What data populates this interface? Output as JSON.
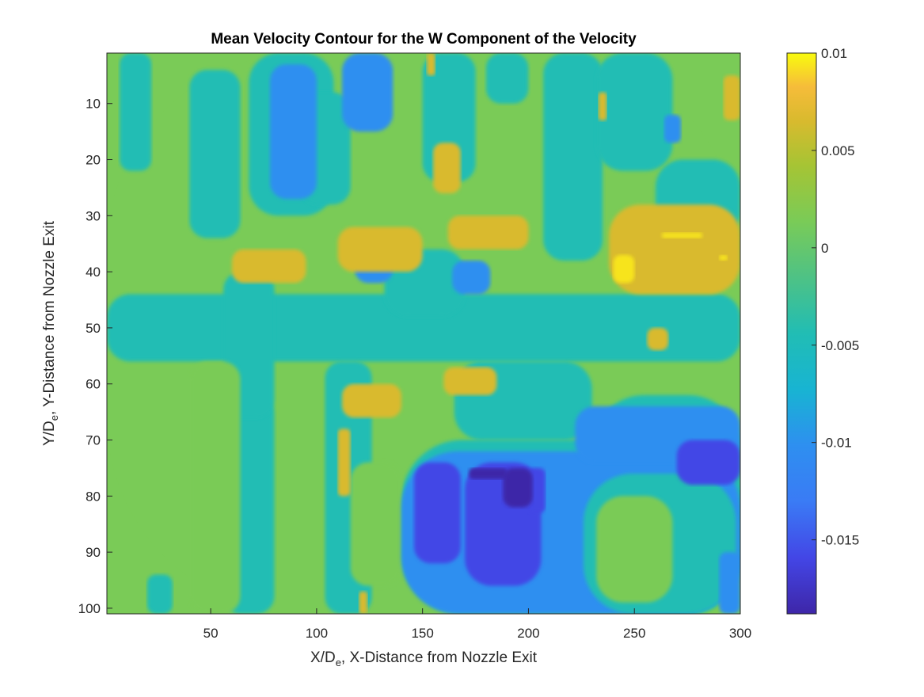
{
  "chart_data": {
    "type": "heatmap",
    "title": "Mean Velocity Contour for the W Component of the Velocity",
    "xlabel": {
      "prefix": "X/D",
      "sub": "e",
      "suffix": ", X-Distance from Nozzle Exit"
    },
    "ylabel": {
      "prefix": "Y/D",
      "sub": "e",
      "suffix": ",  Y-Distance from Nozzle Exit"
    },
    "xlim": [
      1,
      300
    ],
    "ylim": [
      1,
      101
    ],
    "y_reversed": true,
    "xticks": [
      50,
      100,
      150,
      200,
      250,
      300
    ],
    "yticks": [
      10,
      20,
      30,
      40,
      50,
      60,
      70,
      80,
      90,
      100
    ],
    "colorbar": {
      "colormap": "parula",
      "clim": [
        -0.0188,
        0.01
      ],
      "ticks": [
        0.01,
        0.005,
        0,
        -0.005,
        -0.01,
        -0.015
      ],
      "tick_labels": [
        "0.01",
        "0.005",
        "0",
        "-0.005",
        "-0.01",
        "-0.015"
      ]
    },
    "grid": false,
    "contour_levels": [
      -0.0188,
      -0.0165,
      -0.014,
      -0.0115,
      -0.009,
      -0.0065,
      -0.004,
      -0.0015,
      0.001,
      0.0035,
      0.006,
      0.0085
    ],
    "level_colors": [
      "#3e26a8",
      "#4346e6",
      "#3a7bf5",
      "#2e8ff0",
      "#18b4d2",
      "#21bdb4",
      "#4ec285",
      "#7acb57",
      "#a6c434",
      "#d9ba2e",
      "#f6bc3a",
      "#f7e41f"
    ],
    "regions": [
      {
        "value": 0.0,
        "x": [
          1,
          300
        ],
        "y": [
          1,
          101
        ]
      },
      {
        "value": -0.005,
        "x": [
          1,
          300
        ],
        "y": [
          44,
          56
        ]
      },
      {
        "value": -0.005,
        "x": [
          7,
          22
        ],
        "y": [
          1,
          22
        ]
      },
      {
        "value": -0.005,
        "x": [
          40,
          64
        ],
        "y": [
          4,
          34
        ]
      },
      {
        "value": -0.005,
        "x": [
          68,
          108
        ],
        "y": [
          1,
          30
        ]
      },
      {
        "value": -0.005,
        "x": [
          92,
          116
        ],
        "y": [
          8,
          28
        ]
      },
      {
        "value": -0.005,
        "x": [
          150,
          175
        ],
        "y": [
          1,
          24
        ]
      },
      {
        "value": -0.005,
        "x": [
          180,
          200
        ],
        "y": [
          1,
          10
        ]
      },
      {
        "value": -0.005,
        "x": [
          207,
          235
        ],
        "y": [
          1,
          38
        ]
      },
      {
        "value": -0.005,
        "x": [
          232,
          268
        ],
        "y": [
          1,
          22
        ]
      },
      {
        "value": -0.005,
        "x": [
          260,
          300
        ],
        "y": [
          20,
          34
        ]
      },
      {
        "value": -0.005,
        "x": [
          132,
          170
        ],
        "y": [
          36,
          48
        ]
      },
      {
        "value": -0.005,
        "x": [
          165,
          230
        ],
        "y": [
          56,
          70
        ]
      },
      {
        "value": -0.005,
        "x": [
          230,
          300
        ],
        "y": [
          62,
          101
        ]
      },
      {
        "value": -0.005,
        "x": [
          140,
          300
        ],
        "y": [
          70,
          101
        ]
      },
      {
        "value": -0.005,
        "x": [
          56,
          80
        ],
        "y": [
          62,
          101
        ]
      },
      {
        "value": -0.005,
        "x": [
          104,
          126
        ],
        "y": [
          56,
          101
        ]
      },
      {
        "value": -0.005,
        "x": [
          56,
          80
        ],
        "y": [
          40,
          66
        ]
      },
      {
        "value": -0.005,
        "x": [
          20,
          32
        ],
        "y": [
          94,
          101
        ]
      },
      {
        "value": 0.0,
        "x": [
          116,
          140
        ],
        "y": [
          74,
          96
        ]
      },
      {
        "value": 0.0,
        "x": [
          236,
          270
        ],
        "y": [
          76,
          99
        ]
      },
      {
        "value": 0.0,
        "x": [
          40,
          64
        ],
        "y": [
          56,
          101
        ]
      },
      {
        "value": -0.01,
        "x": [
          78,
          100
        ],
        "y": [
          3,
          27
        ]
      },
      {
        "value": -0.01,
        "x": [
          112,
          136
        ],
        "y": [
          1,
          15
        ]
      },
      {
        "value": -0.01,
        "x": [
          264,
          272
        ],
        "y": [
          12,
          17
        ]
      },
      {
        "value": -0.01,
        "x": [
          118,
          136
        ],
        "y": [
          34,
          42
        ]
      },
      {
        "value": -0.01,
        "x": [
          164,
          182
        ],
        "y": [
          38,
          44
        ]
      },
      {
        "value": -0.01,
        "x": [
          140,
          300
        ],
        "y": [
          72,
          101
        ]
      },
      {
        "value": -0.01,
        "x": [
          222,
          300
        ],
        "y": [
          64,
          74
        ]
      },
      {
        "value": -0.005,
        "x": [
          226,
          298
        ],
        "y": [
          76,
          101
        ]
      },
      {
        "value": 0.0,
        "x": [
          232,
          268
        ],
        "y": [
          80,
          99
        ]
      },
      {
        "value": -0.01,
        "x": [
          290,
          300
        ],
        "y": [
          90,
          101
        ]
      },
      {
        "value": -0.015,
        "x": [
          146,
          168
        ],
        "y": [
          74,
          92
        ]
      },
      {
        "value": -0.015,
        "x": [
          170,
          206
        ],
        "y": [
          74,
          96
        ]
      },
      {
        "value": -0.015,
        "x": [
          200,
          208
        ],
        "y": [
          75,
          83
        ]
      },
      {
        "value": -0.015,
        "x": [
          270,
          300
        ],
        "y": [
          70,
          78
        ]
      },
      {
        "value": -0.018,
        "x": [
          188,
          202
        ],
        "y": [
          75,
          82
        ]
      },
      {
        "value": -0.018,
        "x": [
          172,
          190
        ],
        "y": [
          75,
          77
        ]
      },
      {
        "value": 0.005,
        "x": [
          152,
          156
        ],
        "y": [
          1,
          5
        ]
      },
      {
        "value": 0.005,
        "x": [
          233,
          237
        ],
        "y": [
          8,
          13
        ]
      },
      {
        "value": 0.005,
        "x": [
          292,
          300
        ],
        "y": [
          5,
          13
        ]
      },
      {
        "value": 0.005,
        "x": [
          155,
          168
        ],
        "y": [
          17,
          26
        ]
      },
      {
        "value": 0.005,
        "x": [
          60,
          95
        ],
        "y": [
          36,
          42
        ]
      },
      {
        "value": 0.005,
        "x": [
          110,
          150
        ],
        "y": [
          32,
          40
        ]
      },
      {
        "value": 0.005,
        "x": [
          162,
          200
        ],
        "y": [
          30,
          36
        ]
      },
      {
        "value": 0.005,
        "x": [
          238,
          300
        ],
        "y": [
          28,
          44
        ]
      },
      {
        "value": 0.005,
        "x": [
          256,
          266
        ],
        "y": [
          50,
          54
        ]
      },
      {
        "value": 0.005,
        "x": [
          112,
          140
        ],
        "y": [
          60,
          66
        ]
      },
      {
        "value": 0.005,
        "x": [
          160,
          185
        ],
        "y": [
          57,
          62
        ]
      },
      {
        "value": 0.005,
        "x": [
          110,
          116
        ],
        "y": [
          68,
          80
        ]
      },
      {
        "value": 0.005,
        "x": [
          120,
          124
        ],
        "y": [
          97,
          101
        ]
      },
      {
        "value": 0.0085,
        "x": [
          240,
          250
        ],
        "y": [
          37,
          42
        ]
      },
      {
        "value": 0.0085,
        "x": [
          263,
          282
        ],
        "y": [
          33,
          34
        ]
      },
      {
        "value": 0.0085,
        "x": [
          290,
          294
        ],
        "y": [
          37,
          38
        ]
      }
    ]
  }
}
